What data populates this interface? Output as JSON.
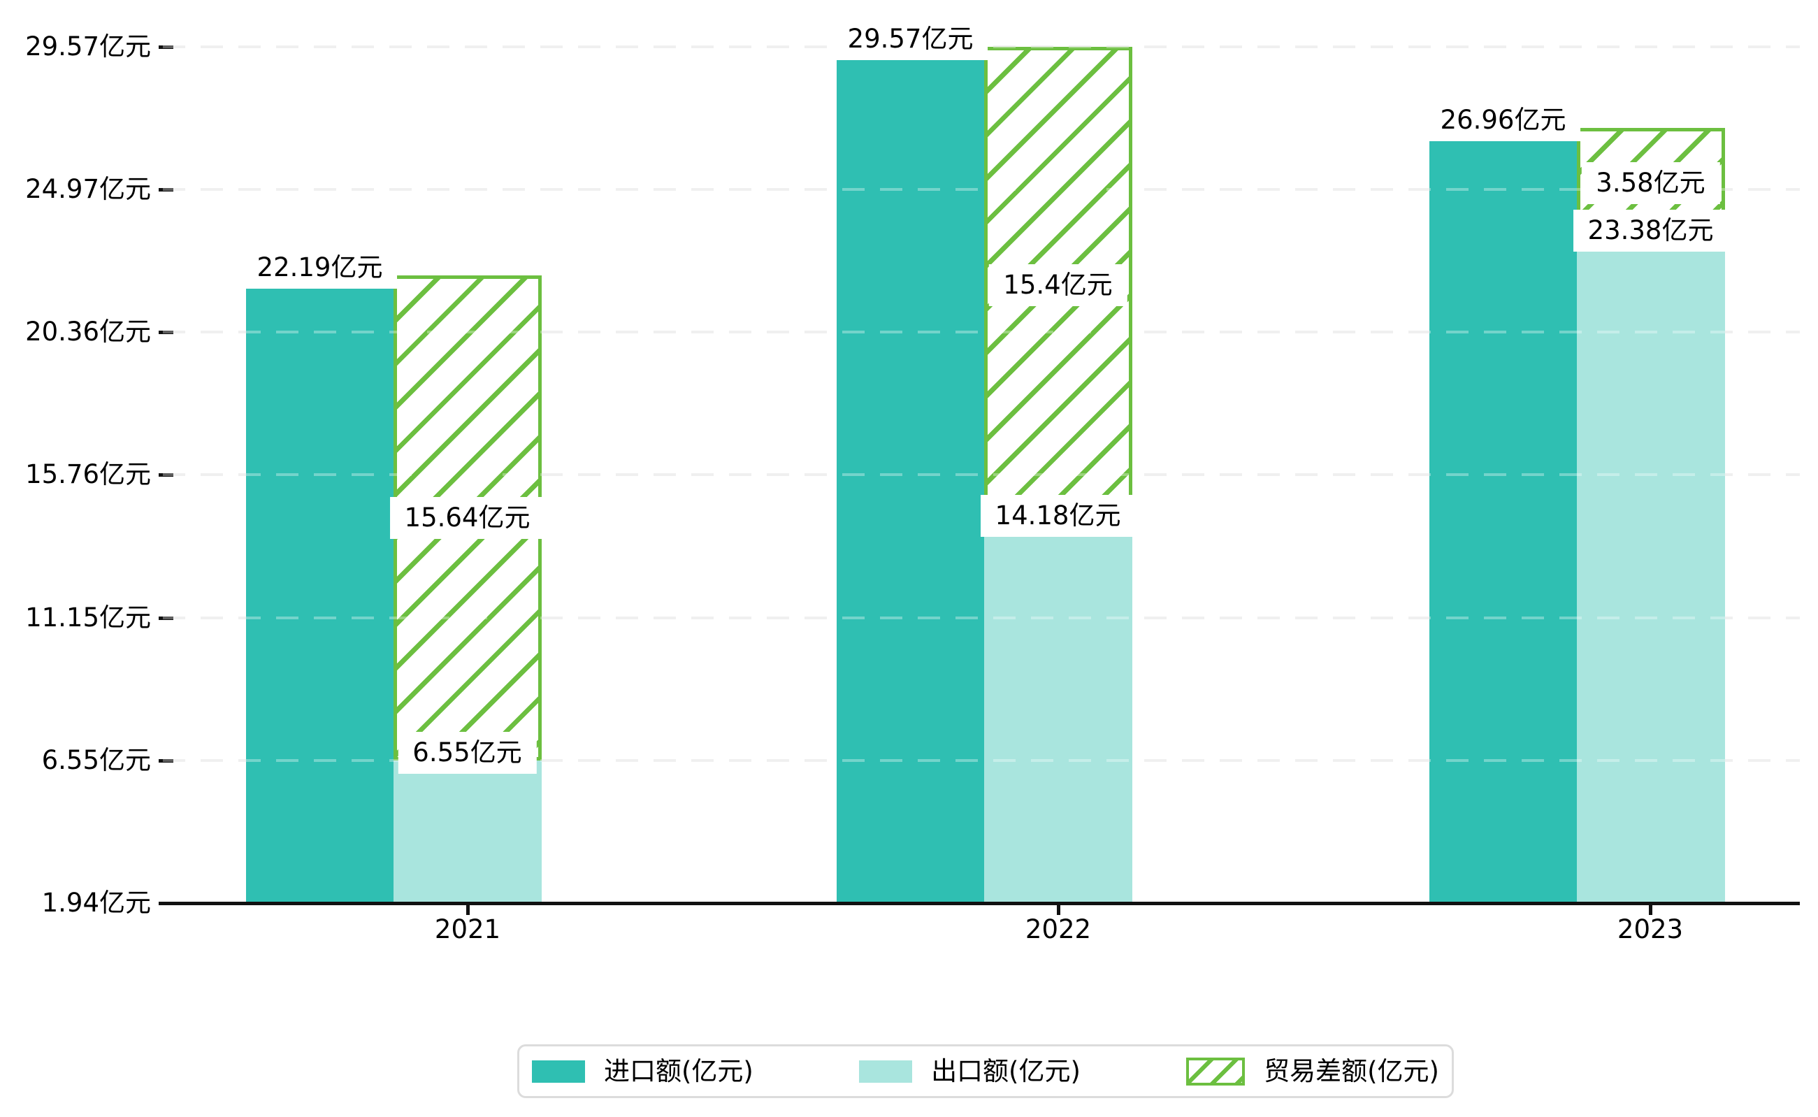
{
  "chart_data": {
    "type": "bar",
    "categories": [
      "2021",
      "2022",
      "2023"
    ],
    "series": [
      {
        "key": "import",
        "name": "进口额(亿元)",
        "values": [
          22.19,
          29.57,
          26.96
        ],
        "labels": [
          "22.19亿元",
          "29.57亿元",
          "26.96亿元"
        ],
        "color": "#2fbfb2",
        "style": "solid"
      },
      {
        "key": "export",
        "name": "出口额(亿元)",
        "values": [
          6.55,
          14.18,
          23.38
        ],
        "labels": [
          "6.55亿元",
          "14.18亿元",
          "23.38亿元"
        ],
        "color": "#a9e5de",
        "style": "solid"
      },
      {
        "key": "diff",
        "name": "贸易差额(亿元)",
        "values": [
          15.64,
          15.4,
          3.58
        ],
        "labels": [
          "15.64亿元",
          "15.4亿元",
          "3.58亿元"
        ],
        "color": "#6cbf40",
        "style": "hatch-overlay-on-export"
      }
    ],
    "y_ticks": [
      {
        "value": 1.94,
        "label": "1.94亿元"
      },
      {
        "value": 6.55,
        "label": "6.55亿元"
      },
      {
        "value": 11.15,
        "label": "11.15亿元"
      },
      {
        "value": 15.76,
        "label": "15.76亿元"
      },
      {
        "value": 20.36,
        "label": "20.36亿元"
      },
      {
        "value": 24.97,
        "label": "24.97亿元"
      },
      {
        "value": 29.57,
        "label": "29.57亿元"
      }
    ],
    "ylim": [
      1.94,
      29.57
    ],
    "xlabel": "",
    "ylabel": "",
    "title": "",
    "grid": "horizontal-dashed",
    "legend_position": "bottom"
  },
  "legend": {
    "items": [
      {
        "label": "进口额(亿元)"
      },
      {
        "label": "出口额(亿元)"
      },
      {
        "label": "贸易差额(亿元)"
      }
    ]
  },
  "colors": {
    "import": "#2fbfb2",
    "export": "#a9e5de",
    "diff": "#6cbf40",
    "grid": "#e8e8e8",
    "axis": "#111111",
    "legend_border": "#dcdcdc"
  }
}
